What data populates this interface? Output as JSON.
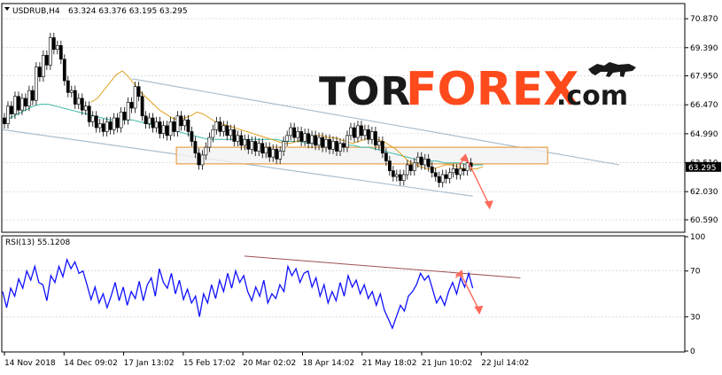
{
  "chart_data": [
    {
      "type": "candlestick",
      "header": {
        "symbol": "USDRUB,H4",
        "ohlc": "63.324 63.376 63.195 63.295"
      },
      "ylim": [
        60.0,
        71.6
      ],
      "price_ticks": [
        "70.870",
        "69.390",
        "67.950",
        "66.470",
        "64.990",
        "63.510",
        "62.030",
        "60.590"
      ],
      "price_tick_values": [
        70.87,
        69.39,
        67.95,
        66.47,
        64.99,
        63.51,
        62.03,
        60.59
      ],
      "current_price": "63.295",
      "current_price_value": 63.295,
      "x_labels": [
        "14 Nov 2018",
        "14 Dec 09:02",
        "17 Jan 13:02",
        "15 Feb 17:02",
        "20 Mar 02:02",
        "18 Apr 14:02",
        "21 May 18:02",
        "21 Jun 10:02",
        "22 Jul 14:02"
      ],
      "price_path": [
        65.8,
        65.5,
        66.4,
        66.0,
        66.9,
        66.2,
        66.8,
        66.4,
        67.2,
        66.7,
        68.4,
        67.9,
        69.0,
        68.5,
        69.9,
        69.3,
        69.5,
        68.8,
        67.7,
        67.1,
        67.2,
        66.5,
        66.8,
        66.2,
        66.4,
        65.6,
        65.9,
        65.3,
        65.5,
        65.1,
        65.6,
        65.2,
        65.8,
        65.3,
        66.1,
        65.7,
        66.6,
        66.3,
        67.4,
        66.9,
        65.9,
        65.5,
        65.8,
        65.3,
        65.6,
        65.0,
        65.4,
        64.9,
        65.6,
        65.1,
        65.9,
        65.4,
        65.7,
        65.1,
        64.6,
        64.0,
        63.4,
        63.9,
        64.3,
        64.8,
        65.2,
        65.6,
        65.1,
        65.4,
        64.9,
        65.2,
        64.6,
        64.9,
        64.4,
        64.7,
        64.2,
        64.6,
        64.1,
        64.5,
        64.0,
        64.3,
        63.8,
        64.2,
        63.7,
        64.1,
        64.6,
        64.9,
        65.3,
        64.8,
        65.1,
        64.6,
        65.0,
        64.5,
        64.9,
        64.4,
        64.8,
        64.3,
        64.7,
        64.2,
        64.6,
        64.1,
        64.5,
        64.3,
        64.9,
        65.3,
        64.8,
        65.4,
        64.9,
        65.2,
        64.7,
        65.1,
        64.4,
        64.6,
        64.0,
        63.6,
        63.1,
        62.8,
        62.9,
        62.6,
        62.9,
        63.4,
        63.1,
        63.5,
        63.8,
        63.4,
        63.7,
        63.3,
        63.0,
        62.8,
        62.5,
        62.9,
        62.7,
        63.0,
        63.2,
        62.9,
        63.2,
        63.1,
        63.5,
        63.3
      ],
      "ma_fast": [
        66.6,
        66.8,
        67.2,
        67.6,
        68.0,
        68.2,
        67.9,
        67.5,
        67.1,
        66.8,
        66.5,
        66.2,
        66.0,
        65.8,
        65.7,
        65.8,
        65.9,
        66.1,
        66.0,
        65.8,
        65.6,
        65.5,
        65.4,
        65.3,
        65.2,
        65.1,
        65.0,
        64.9,
        64.8,
        64.7,
        64.6,
        64.5,
        64.5,
        64.6,
        64.7,
        64.8,
        64.9,
        64.9,
        64.8,
        64.8,
        64.7,
        64.6,
        64.5,
        64.6,
        64.7,
        64.8,
        64.7,
        64.6,
        64.4,
        64.2,
        63.9,
        63.6,
        63.4,
        63.3,
        63.2,
        63.2,
        63.3,
        63.4,
        63.4,
        63.3,
        63.2,
        63.2,
        63.2,
        63.3
      ],
      "ma_slow": [
        65.6,
        65.8,
        66.0,
        66.2,
        66.4,
        66.5,
        66.5,
        66.4,
        66.3,
        66.2,
        66.1,
        66.0,
        65.9,
        65.8,
        65.7,
        65.7,
        65.7,
        65.7,
        65.6,
        65.5,
        65.4,
        65.3,
        65.2,
        65.1,
        65.0,
        64.9,
        64.8,
        64.7,
        64.7,
        64.7,
        64.7,
        64.7,
        64.7,
        64.7,
        64.7,
        64.7,
        64.7,
        64.6,
        64.6,
        64.6,
        64.5,
        64.5,
        64.5,
        64.5,
        64.5,
        64.4,
        64.4,
        64.3,
        64.3,
        64.2,
        64.1,
        64.0,
        63.9,
        63.8,
        63.7,
        63.6,
        63.6,
        63.6,
        63.5,
        63.5,
        63.5,
        63.4,
        63.4,
        63.4
      ],
      "channel_upper": [
        [
          0.19,
          67.8
        ],
        [
          0.905,
          63.4
        ]
      ],
      "channel_lower": [
        [
          0.0,
          65.2
        ],
        [
          0.69,
          61.8
        ]
      ],
      "zone": {
        "x": [
          0.255,
          0.8
        ],
        "y": [
          63.45,
          64.3
        ]
      },
      "forecast": [
        [
          0.67,
          63.4
        ],
        [
          0.68,
          63.8
        ],
        [
          0.715,
          61.3
        ]
      ]
    },
    {
      "type": "line",
      "header": {
        "label": "RSI(13) 55.1208"
      },
      "ylim": [
        0,
        100
      ],
      "y_ticks": [
        "100",
        "70",
        "30",
        "0"
      ],
      "y_tick_values": [
        100,
        70,
        30,
        0
      ],
      "x_labels": [
        "14 Nov 2018",
        "14 Dec 09:02",
        "17 Jan 13:02",
        "15 Feb 17:02",
        "20 Mar 02:02",
        "18 Apr 14:02",
        "21 May 18:02",
        "21 Jun 10:02",
        "22 Jul 14:02"
      ],
      "series": [
        {
          "values": [
            52,
            38,
            55,
            48,
            63,
            55,
            70,
            62,
            74,
            60,
            58,
            44,
            66,
            60,
            74,
            65,
            80,
            72,
            78,
            68,
            70,
            58,
            45,
            56,
            42,
            50,
            38,
            48,
            60,
            44,
            56,
            40,
            52,
            46,
            61,
            44,
            58,
            64,
            48,
            72,
            60,
            55,
            68,
            50,
            62,
            45,
            54,
            42,
            48,
            30,
            50,
            42,
            58,
            46,
            62,
            52,
            68,
            55,
            70,
            60,
            66,
            52,
            44,
            56,
            48,
            62,
            42,
            50,
            46,
            58,
            52,
            74,
            66,
            72,
            60,
            68,
            70,
            56,
            64,
            48,
            58,
            42,
            52,
            44,
            60,
            48,
            66,
            56,
            62,
            50,
            58,
            46,
            52,
            40,
            50,
            36,
            28,
            20,
            30,
            40,
            35,
            48,
            52,
            58,
            68,
            62,
            66,
            54,
            42,
            48,
            40,
            52,
            60,
            50,
            64,
            56,
            68,
            55
          ]
        }
      ],
      "trendline": [
        [
          0.355,
          83
        ],
        [
          0.76,
          64
        ]
      ],
      "forecast": [
        [
          0.665,
          64
        ],
        [
          0.672,
          68
        ],
        [
          0.7,
          35
        ]
      ]
    }
  ]
}
